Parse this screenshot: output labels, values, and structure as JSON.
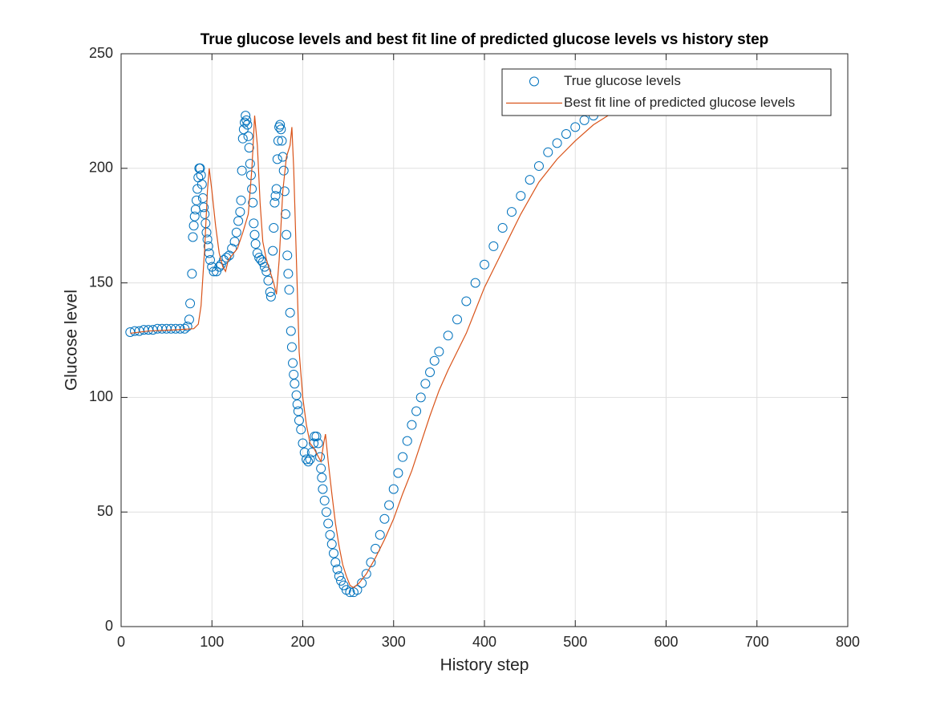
{
  "chart_data": {
    "type": "scatter",
    "title": "True glucose levels and best fit line of predicted glucose levels vs history step",
    "x_label": "History step",
    "y_label": "Glucose level",
    "xlim": [
      0,
      800
    ],
    "xticks": [
      0,
      100,
      200,
      300,
      400,
      500,
      600,
      700,
      800
    ],
    "ylim": [
      0,
      250
    ],
    "yticks": [
      0,
      50,
      100,
      150,
      200,
      250
    ],
    "grid": true,
    "legend": "northeast",
    "series": [
      {
        "name": "True glucose levels",
        "type": "scatter",
        "color": "#0072bd",
        "x": [
          10,
          15,
          20,
          25,
          30,
          35,
          40,
          45,
          50,
          55,
          60,
          65,
          70,
          73,
          75,
          76,
          78,
          79,
          80,
          81,
          82,
          83,
          84,
          85,
          86,
          87,
          88,
          89,
          90,
          91,
          92,
          93,
          94,
          95,
          96,
          97,
          98,
          100,
          102,
          105,
          108,
          110,
          113,
          116,
          119,
          122,
          125,
          127,
          129,
          131,
          132,
          133,
          134,
          135,
          136,
          137,
          138,
          139,
          140,
          141,
          142,
          143,
          144,
          145,
          146,
          147,
          148,
          150,
          152,
          154,
          156,
          158,
          160,
          162,
          164,
          165,
          167,
          168,
          169,
          170,
          171,
          172,
          173,
          174,
          175,
          176,
          177,
          178,
          179,
          180,
          181,
          182,
          183,
          184,
          185,
          186,
          187,
          188,
          189,
          190,
          191,
          193,
          194,
          195,
          196,
          198,
          200,
          202,
          204,
          206,
          208,
          210,
          212,
          213,
          215,
          217,
          219,
          220,
          221,
          222,
          224,
          226,
          228,
          230,
          232,
          234,
          236,
          238,
          240,
          242,
          245,
          248,
          252,
          256,
          260,
          265,
          270,
          275,
          280,
          285,
          290,
          295,
          300,
          305,
          310,
          315,
          320,
          325,
          330,
          335,
          340,
          345,
          350,
          360,
          370,
          380,
          390,
          400,
          410,
          420,
          430,
          440,
          450,
          460,
          470,
          480,
          490,
          500,
          510,
          520,
          530,
          540,
          550,
          560,
          570,
          580
        ],
        "values": [
          128.5,
          129,
          129,
          129.5,
          129.5,
          129.5,
          130,
          130,
          130,
          130,
          130,
          130,
          130,
          131,
          134,
          141,
          154,
          170,
          175,
          179,
          182,
          186,
          191,
          196,
          200,
          200,
          197,
          193,
          187,
          183,
          180,
          176,
          172,
          169,
          166,
          163,
          160,
          157,
          155,
          155,
          157,
          158,
          160,
          161,
          162,
          165,
          168,
          172,
          177,
          181,
          186,
          199,
          213,
          217,
          220,
          223,
          221,
          219,
          214,
          209,
          202,
          197,
          191,
          185,
          176,
          171,
          167,
          163,
          161,
          160,
          159,
          157,
          155,
          151,
          146,
          144,
          164,
          174,
          185,
          188,
          191,
          204,
          212,
          218,
          219,
          217,
          212,
          205,
          199,
          190,
          180,
          171,
          162,
          154,
          147,
          137,
          129,
          122,
          115,
          110,
          106,
          101,
          97,
          94,
          90,
          86,
          80,
          76,
          73,
          72,
          73,
          76,
          80,
          83,
          83,
          80,
          74,
          69,
          65,
          60,
          55,
          50,
          45,
          40,
          36,
          32,
          28,
          25,
          22,
          20,
          18,
          16,
          15,
          15,
          16,
          19,
          23,
          28,
          34,
          40,
          47,
          53,
          60,
          67,
          74,
          81,
          88,
          94,
          100,
          106,
          111,
          116,
          120,
          127,
          134,
          142,
          150,
          158,
          166,
          174,
          181,
          188,
          195,
          201,
          207,
          211,
          215,
          218,
          221,
          223,
          225,
          226,
          227,
          228,
          229,
          229.5
        ]
      },
      {
        "name": "Best fit line of predicted glucose levels",
        "type": "line",
        "color": "#d95319",
        "x": [
          10,
          30,
          60,
          80,
          85,
          88,
          92,
          95,
          97,
          100,
          104,
          108,
          112,
          115,
          118,
          122,
          128,
          134,
          140,
          144,
          147,
          150,
          153,
          156,
          160,
          164,
          168,
          171,
          174,
          178,
          182,
          186,
          188,
          190,
          193,
          196,
          200,
          204,
          208,
          212,
          216,
          220,
          223,
          225,
          228,
          232,
          236,
          240,
          244,
          248,
          252,
          256,
          262,
          270,
          280,
          290,
          300,
          310,
          320,
          330,
          340,
          350,
          360,
          370,
          380,
          390,
          400,
          410,
          420,
          440,
          460,
          480,
          500,
          520,
          540,
          560,
          580,
          600
        ],
        "values": [
          128,
          129,
          129.5,
          130,
          132,
          140,
          165,
          190,
          200,
          190,
          175,
          163,
          157,
          155,
          160,
          162,
          165,
          172,
          180,
          200,
          223,
          210,
          185,
          168,
          160,
          155,
          150,
          145,
          160,
          190,
          205,
          210,
          218,
          200,
          160,
          120,
          100,
          88,
          80,
          78,
          75,
          72,
          80,
          84,
          72,
          58,
          45,
          35,
          27,
          22,
          18,
          17,
          19,
          23,
          30,
          38,
          47,
          58,
          68,
          80,
          92,
          103,
          112,
          120,
          128,
          138,
          148,
          156,
          164,
          180,
          194,
          204,
          212,
          219,
          224,
          227,
          229,
          230
        ]
      }
    ]
  }
}
